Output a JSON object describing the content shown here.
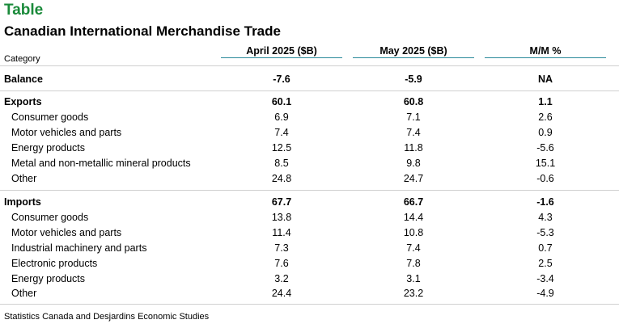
{
  "header": {
    "label": "Table",
    "title": "Canadian International Merchandise Trade",
    "category_label": "Category"
  },
  "columns": [
    "April 2025 ($B)",
    "May 2025 ($B)",
    "M/M %"
  ],
  "rows": [
    {
      "label": "Balance",
      "values": [
        "-7.6",
        "-5.9",
        "NA"
      ]
    },
    {
      "label": "Exports",
      "values": [
        "60.1",
        "60.8",
        "1.1"
      ]
    },
    {
      "label": "Consumer goods",
      "values": [
        "6.9",
        "7.1",
        "2.6"
      ]
    },
    {
      "label": "Motor vehicles and parts",
      "values": [
        "7.4",
        "7.4",
        "0.9"
      ]
    },
    {
      "label": "Energy products",
      "values": [
        "12.5",
        "11.8",
        "-5.6"
      ]
    },
    {
      "label": "Metal and non-metallic mineral products",
      "values": [
        "8.5",
        "9.8",
        "15.1"
      ]
    },
    {
      "label": "Other",
      "values": [
        "24.8",
        "24.7",
        "-0.6"
      ]
    },
    {
      "label": "Imports",
      "values": [
        "67.7",
        "66.7",
        "-1.6"
      ]
    },
    {
      "label": "Consumer goods",
      "values": [
        "13.8",
        "14.4",
        "4.3"
      ]
    },
    {
      "label": "Motor vehicles and parts",
      "values": [
        "11.4",
        "10.8",
        "-5.3"
      ]
    },
    {
      "label": "Industrial machinery and parts",
      "values": [
        "7.3",
        "7.4",
        "0.7"
      ]
    },
    {
      "label": "Electronic products",
      "values": [
        "7.6",
        "7.8",
        "2.5"
      ]
    },
    {
      "label": "Energy products",
      "values": [
        "3.2",
        "3.1",
        "-3.4"
      ]
    },
    {
      "label": "Other",
      "values": [
        "24.4",
        "23.2",
        "-4.9"
      ]
    }
  ],
  "source": "Statistics Canada and Desjardins Economic Studies"
}
